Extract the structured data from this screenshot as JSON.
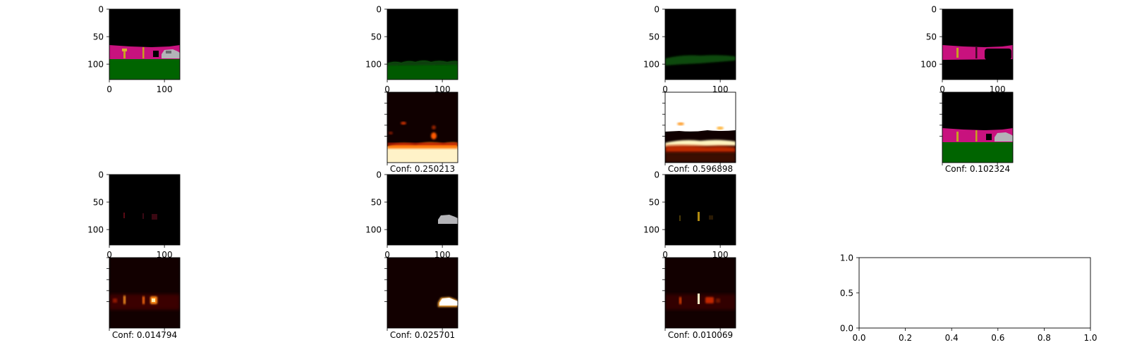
{
  "colors": {
    "background": "#000000",
    "road_green": "#006400",
    "sidewalk_magenta": "#c8127e",
    "pole_yellow": "#c8a020",
    "car_gray": "#b4b4b8",
    "heat_low": "#100000",
    "heat_high": "#ffffff"
  },
  "chart_data": [
    {
      "type": "heatmap",
      "panel": "input-image",
      "xticks": [
        0,
        100
      ],
      "yticks": [
        0,
        50,
        100
      ],
      "xlim": [
        0,
        128
      ],
      "ylim": [
        128,
        0
      ],
      "label": ""
    },
    {
      "type": "heatmap",
      "panel": "mask-road",
      "xticks": [
        0,
        100
      ],
      "yticks": [
        0,
        50,
        100
      ],
      "xlim": [
        0,
        128
      ],
      "ylim": [
        128,
        0
      ],
      "label": ""
    },
    {
      "type": "heatmap",
      "panel": "mask-terrain",
      "xticks": [
        0,
        100
      ],
      "yticks": [
        0,
        50,
        100
      ],
      "xlim": [
        0,
        128
      ],
      "ylim": [
        128,
        0
      ],
      "label": ""
    },
    {
      "type": "heatmap",
      "panel": "mask-sidewalk",
      "xticks": [
        0,
        100
      ],
      "yticks": [
        0,
        50,
        100
      ],
      "xlim": [
        0,
        128
      ],
      "ylim": [
        128,
        0
      ],
      "label": ""
    },
    {
      "type": "heatmap",
      "panel": "heat-road",
      "label": "Conf: 0.250213",
      "confidence": 0.250213
    },
    {
      "type": "heatmap",
      "panel": "heat-terrain",
      "label": "Conf: 0.596898",
      "confidence": 0.596898
    },
    {
      "type": "heatmap",
      "panel": "recon-sidewalk",
      "label": "Conf: 0.102324",
      "confidence": 0.102324
    },
    {
      "type": "heatmap",
      "panel": "mask-poles",
      "xticks": [
        0,
        100
      ],
      "yticks": [
        0,
        50,
        100
      ],
      "xlim": [
        0,
        128
      ],
      "ylim": [
        128,
        0
      ],
      "label": ""
    },
    {
      "type": "heatmap",
      "panel": "mask-car",
      "xticks": [
        0,
        100
      ],
      "yticks": [
        0,
        50,
        100
      ],
      "xlim": [
        0,
        128
      ],
      "ylim": [
        128,
        0
      ],
      "label": ""
    },
    {
      "type": "heatmap",
      "panel": "mask-signs",
      "xticks": [
        0,
        100
      ],
      "yticks": [
        0,
        50,
        100
      ],
      "xlim": [
        0,
        128
      ],
      "ylim": [
        128,
        0
      ],
      "label": ""
    },
    {
      "type": "heatmap",
      "panel": "heat-poles",
      "label": "Conf: 0.014794",
      "confidence": 0.014794
    },
    {
      "type": "heatmap",
      "panel": "heat-car",
      "label": "Conf: 0.025701",
      "confidence": 0.025701
    },
    {
      "type": "heatmap",
      "panel": "heat-signs",
      "label": "Conf: 0.010069",
      "confidence": 0.010069
    },
    {
      "type": "line",
      "panel": "empty-axes",
      "xlim": [
        0.0,
        1.0
      ],
      "ylim": [
        0.0,
        1.0
      ],
      "xticks": [
        "0.0",
        "0.2",
        "0.4",
        "0.6",
        "0.8",
        "1.0"
      ],
      "yticks": [
        "0.0",
        "0.5",
        "1.0"
      ],
      "series": []
    }
  ]
}
